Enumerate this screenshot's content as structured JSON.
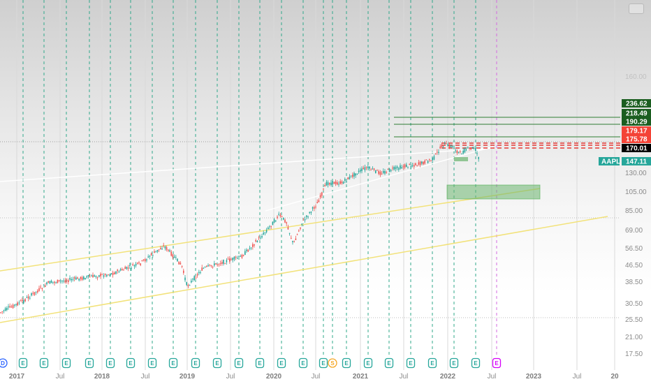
{
  "chart_data": {
    "type": "candlestick",
    "symbol": "AAPL",
    "last_price": 147.11,
    "y_axis": {
      "scale": "log",
      "ticks": [
        236.62,
        218.49,
        190.29,
        179.17,
        175.78,
        170.01,
        160.0,
        130.0,
        105.0,
        85.0,
        69.0,
        56.5,
        46.5,
        38.5,
        30.5,
        25.5,
        21.0,
        17.5
      ],
      "faded_ticks": [
        160.0
      ]
    },
    "x_axis": {
      "labels": [
        {
          "text": "2017",
          "kind": "year"
        },
        {
          "text": "Jul",
          "kind": "month"
        },
        {
          "text": "2018",
          "kind": "year"
        },
        {
          "text": "Jul",
          "kind": "month"
        },
        {
          "text": "2019",
          "kind": "year"
        },
        {
          "text": "Jul",
          "kind": "month"
        },
        {
          "text": "2020",
          "kind": "year"
        },
        {
          "text": "Jul",
          "kind": "month"
        },
        {
          "text": "2021",
          "kind": "year"
        },
        {
          "text": "Jul",
          "kind": "month"
        },
        {
          "text": "2022",
          "kind": "year"
        },
        {
          "text": "Jul",
          "kind": "month"
        },
        {
          "text": "2023",
          "kind": "year"
        },
        {
          "text": "Jul",
          "kind": "month"
        },
        {
          "text": "20",
          "kind": "year"
        }
      ]
    },
    "price_levels": [
      {
        "value": 236.62,
        "label": "236.62",
        "color": "#1b5e20"
      },
      {
        "value": 218.49,
        "label": "218.49",
        "color": "#1b5e20"
      },
      {
        "value": 190.29,
        "label": "190.29",
        "color": "#1b5e20"
      },
      {
        "value": 179.17,
        "label": "179.17",
        "color": "#f44336"
      },
      {
        "value": 175.78,
        "label": "175.78",
        "color": "#f44336"
      },
      {
        "value": 170.01,
        "label": "170.01",
        "color": "#000000"
      }
    ],
    "current_price_tag": {
      "symbol_label": "AAPL",
      "value_label": "147.11",
      "color": "#26a69a"
    },
    "earnings_badges": [
      {
        "letter": "D",
        "color": "#2962ff"
      },
      {
        "letter": "E",
        "color": "#26a69a"
      },
      {
        "letter": "E",
        "color": "#26a69a"
      },
      {
        "letter": "E",
        "color": "#26a69a"
      },
      {
        "letter": "E",
        "color": "#26a69a"
      },
      {
        "letter": "E",
        "color": "#26a69a"
      },
      {
        "letter": "E",
        "color": "#26a69a"
      },
      {
        "letter": "E",
        "color": "#26a69a"
      },
      {
        "letter": "E",
        "color": "#26a69a"
      },
      {
        "letter": "E",
        "color": "#26a69a"
      },
      {
        "letter": "E",
        "color": "#26a69a"
      },
      {
        "letter": "E",
        "color": "#26a69a"
      },
      {
        "letter": "E",
        "color": "#26a69a"
      },
      {
        "letter": "E",
        "color": "#26a69a"
      },
      {
        "letter": "E",
        "color": "#26a69a"
      },
      {
        "letter": "E",
        "color": "#26a69a"
      },
      {
        "letter": "S",
        "color": "#f5a623"
      },
      {
        "letter": "E",
        "color": "#26a69a"
      },
      {
        "letter": "E",
        "color": "#26a69a"
      },
      {
        "letter": "E",
        "color": "#26a69a"
      },
      {
        "letter": "E",
        "color": "#26a69a"
      },
      {
        "letter": "E",
        "color": "#26a69a"
      },
      {
        "letter": "E",
        "color": "#26a69a"
      },
      {
        "letter": "E",
        "color": "#26a69a"
      },
      {
        "letter": "E",
        "color": "#d500f9"
      }
    ],
    "colors": {
      "up": "#26a69a",
      "down": "#ef5350",
      "trend_white": "#ffffff",
      "trend_yellow": "#f2e27a",
      "zone_green": "#6ab46e",
      "earnings_line": "#2fa88a",
      "future_earnings_line": "#d46be0"
    },
    "grid": true
  }
}
